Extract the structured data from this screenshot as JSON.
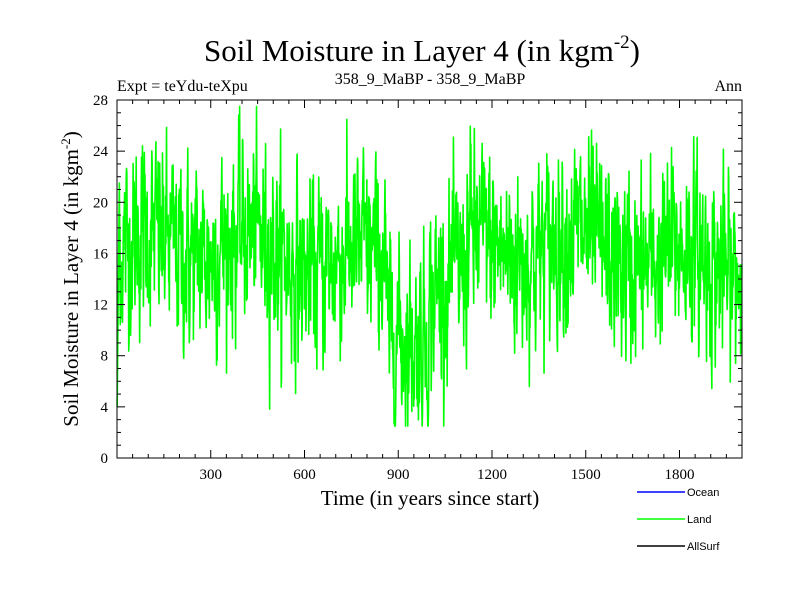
{
  "chart_data": {
    "type": "line",
    "title": "Soil Moisture in Layer 4 (in kgm",
    "title_sup": "-2",
    "title_close": ")",
    "subtitle_left": "Expt = teYdu-teXpu",
    "subtitle_center": "358_9_MaBP - 358_9_MaBP",
    "subtitle_right": "Ann",
    "xlabel": "Time (in years since start)",
    "ylabel": "Soil Moisture in Layer 4 (in kgm",
    "ylabel_sup": "-2",
    "ylabel_close": ")",
    "xlim": [
      0,
      2000
    ],
    "ylim": [
      0,
      28
    ],
    "xticks": [
      300,
      600,
      900,
      1200,
      1500,
      1800
    ],
    "yticks": [
      0,
      4,
      8,
      12,
      16,
      20,
      24,
      28
    ],
    "x_minor_step": 50,
    "y_minor_step": 1,
    "series": [
      {
        "name": "Ocean",
        "color": "#0000ff",
        "values": []
      },
      {
        "name": "Land",
        "color": "#00ff00",
        "n_points": 2000,
        "baseline": 16.0,
        "variability": 3.2,
        "min": 2.5,
        "max": 27.5
      },
      {
        "name": "AllSurf",
        "color": "#000000",
        "values": []
      }
    ],
    "legend": [
      "Ocean",
      "Land",
      "AllSurf"
    ],
    "legend_position": "bottom-right"
  }
}
